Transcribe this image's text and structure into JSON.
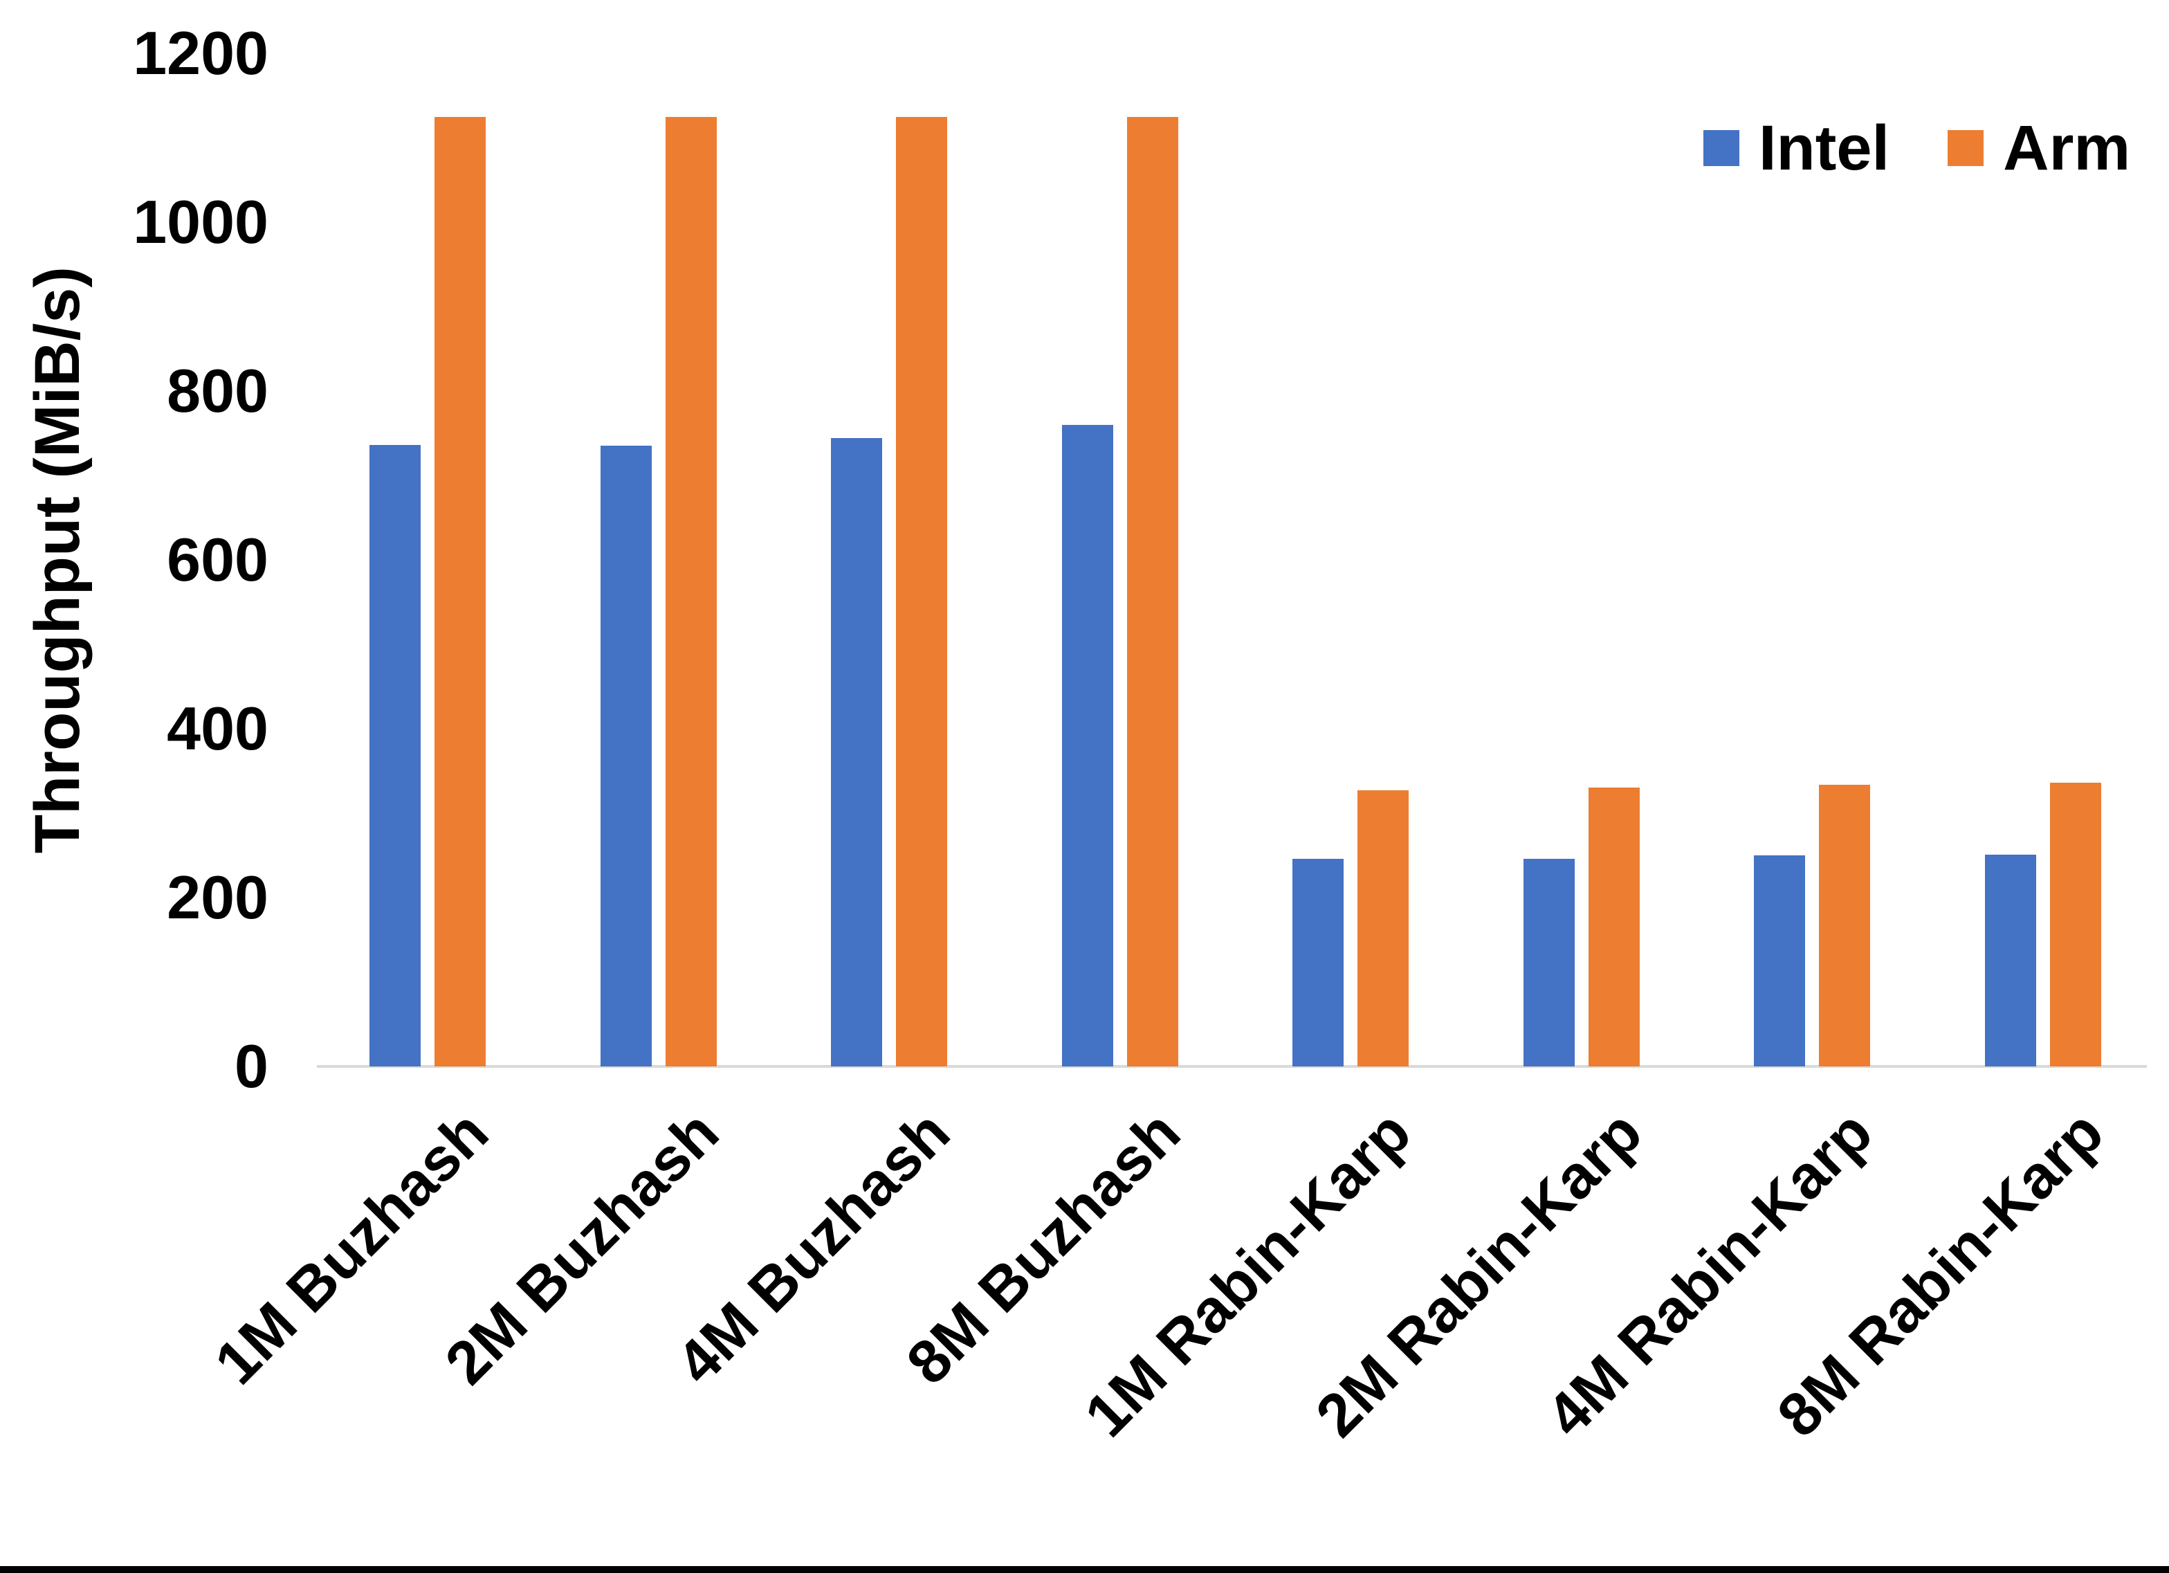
{
  "chart_data": {
    "type": "bar",
    "title": "",
    "xlabel": "",
    "ylabel": "Throughput (MiB/s)",
    "ylim": [
      0,
      1200
    ],
    "ytick_step": 200,
    "yticks": [
      0,
      200,
      400,
      600,
      800,
      1000,
      1200
    ],
    "grid": false,
    "legend_position": "top-right",
    "categories": [
      "1M Buzhash",
      "2M Buzhash",
      "4M Buzhash",
      "8M Buzhash",
      "1M Rabin-Karp",
      "2M Rabin-Karp",
      "4M Rabin-Karp",
      "8M Rabin-Karp"
    ],
    "series": [
      {
        "name": "Intel",
        "color": "#4472C4",
        "values": [
          736,
          735,
          744,
          760,
          246,
          246,
          250,
          251
        ]
      },
      {
        "name": "Arm",
        "color": "#ED7D31",
        "values": [
          1125,
          1125,
          1125,
          1125,
          327,
          330,
          334,
          336
        ]
      }
    ],
    "axis_line_color": "#D9D9D9"
  },
  "legend": {
    "items": [
      {
        "label": "Intel",
        "color": "#4472C4"
      },
      {
        "label": "Arm",
        "color": "#ED7D31"
      }
    ]
  },
  "frame": {
    "bottom_border_color": "#000000"
  }
}
